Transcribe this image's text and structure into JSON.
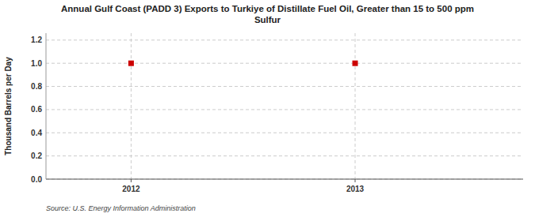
{
  "chart_data": {
    "type": "scatter",
    "title": "Annual Gulf Coast (PADD 3) Exports to Turkiye of Distillate Fuel Oil, Greater than 15 to 500 ppm\nSulfur",
    "y_label": "Thousand Barrels per Day",
    "annotations": [
      "Source: U.S. Energy Information Administration"
    ],
    "x": [
      2012,
      2013
    ],
    "values": [
      1.0,
      1.0
    ],
    "color": "#cc0000",
    "marker": "square",
    "xlim": [
      2011.62,
      2013.75
    ],
    "ylim": [
      0.0,
      1.26
    ],
    "xticks": [
      2012,
      2013
    ],
    "yticks": [
      {
        "value": 0.0,
        "label": "0.0"
      },
      0.2,
      0.4,
      0.6,
      0.8,
      {
        "value": 1.0,
        "label": "1.0"
      },
      1.2
    ],
    "grid": true
  }
}
